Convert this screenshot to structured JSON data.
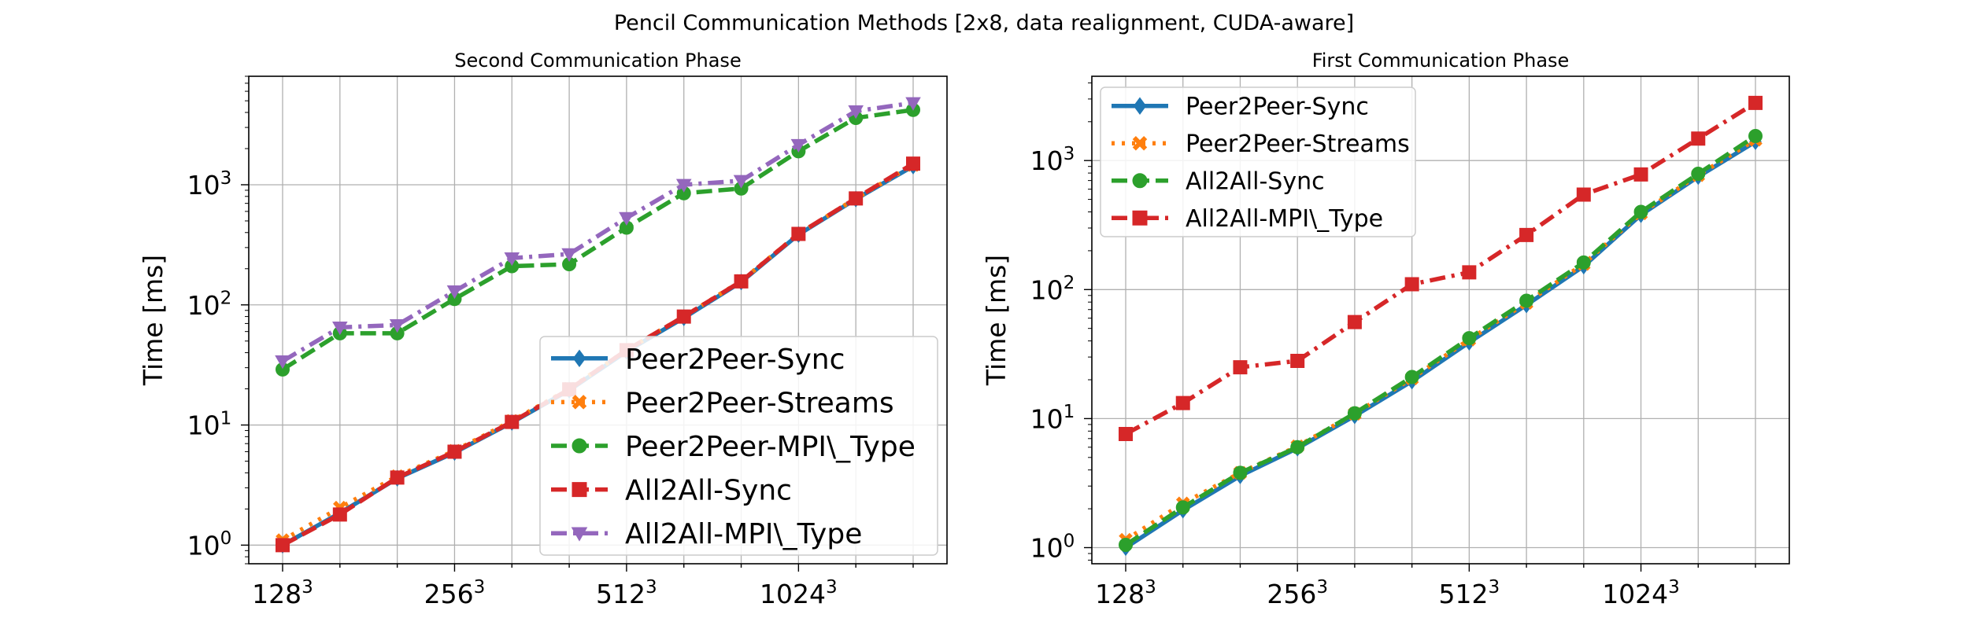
{
  "figure_title": "Pencil Communication Methods [2x8, data realignment, CUDA-aware]",
  "colors": {
    "blue": "#1f77b4",
    "orange": "#ff7f0e",
    "green": "#2ca02c",
    "red": "#d62728",
    "purple": "#9467bd",
    "grid": "#b0b0b0"
  },
  "chart_data": [
    {
      "type": "line",
      "title": "Second Communication Phase",
      "xlabel": "",
      "ylabel": "Time [ms]",
      "yscale": "log",
      "ylim": [
        0.7,
        8000
      ],
      "x_tick_labels": [
        {
          "base": "128",
          "exp": "3"
        },
        {
          "base": "256",
          "exp": "3"
        },
        {
          "base": "512",
          "exp": "3"
        },
        {
          "base": "1024",
          "exp": "3"
        }
      ],
      "y_tick_labels": [
        {
          "base": "10",
          "exp": "0"
        },
        {
          "base": "10",
          "exp": "1"
        },
        {
          "base": "10",
          "exp": "2"
        },
        {
          "base": "10",
          "exp": "3"
        }
      ],
      "grid": true,
      "legend_position": "lower-right",
      "categories": [
        "128³",
        "",
        "",
        "256³",
        "",
        "",
        "512³",
        "",
        "",
        "1024³",
        "",
        ""
      ],
      "series": [
        {
          "name": "Peer2Peer-Sync",
          "color": "#1f77b4",
          "dash": "solid",
          "marker": "diamond",
          "values": [
            1.0,
            1.85,
            3.6,
            5.9,
            10.5,
            19.5,
            41,
            78,
            155,
            385,
            760,
            1430
          ]
        },
        {
          "name": "Peer2Peer-Streams",
          "color": "#ff7f0e",
          "dash": "dotted",
          "marker": "x",
          "values": [
            1.1,
            2.05,
            3.75,
            6.1,
            10.8,
            20,
            42,
            80,
            158,
            390,
            770,
            1460
          ]
        },
        {
          "name": "Peer2Peer-MPI\\_Type",
          "color": "#2ca02c",
          "dash": "dashed",
          "marker": "circle",
          "values": [
            29,
            58,
            58,
            112,
            210,
            218,
            440,
            850,
            930,
            1900,
            3600,
            4200
          ]
        },
        {
          "name": "All2All-Sync",
          "color": "#d62728",
          "dash": "dashed",
          "marker": "square",
          "values": [
            1.0,
            1.8,
            3.65,
            6.0,
            10.6,
            19.8,
            42,
            80,
            157,
            390,
            770,
            1500
          ]
        },
        {
          "name": "All2All-MPI\\_Type",
          "color": "#9467bd",
          "dash": "dashdot",
          "marker": "triangle-down",
          "values": [
            34,
            65,
            68,
            130,
            245,
            265,
            530,
            1000,
            1080,
            2150,
            4100,
            4800
          ]
        }
      ]
    },
    {
      "type": "line",
      "title": "First Communication Phase",
      "xlabel": "",
      "ylabel": "Time [ms]",
      "yscale": "log",
      "ylim": [
        0.75,
        4500
      ],
      "x_tick_labels": [
        {
          "base": "128",
          "exp": "3"
        },
        {
          "base": "256",
          "exp": "3"
        },
        {
          "base": "512",
          "exp": "3"
        },
        {
          "base": "1024",
          "exp": "3"
        }
      ],
      "y_tick_labels": [
        {
          "base": "10",
          "exp": "0"
        },
        {
          "base": "10",
          "exp": "1"
        },
        {
          "base": "10",
          "exp": "2"
        },
        {
          "base": "10",
          "exp": "3"
        }
      ],
      "grid": true,
      "legend_position": "upper-left",
      "categories": [
        "128³",
        "",
        "",
        "256³",
        "",
        "",
        "512³",
        "",
        "",
        "1024³",
        "",
        ""
      ],
      "series": [
        {
          "name": "Peer2Peer-Sync",
          "color": "#1f77b4",
          "dash": "solid",
          "marker": "diamond",
          "values": [
            1.0,
            1.95,
            3.6,
            5.9,
            10.5,
            19.5,
            39,
            76,
            152,
            380,
            750,
            1400
          ]
        },
        {
          "name": "Peer2Peer-Streams",
          "color": "#ff7f0e",
          "dash": "dotted",
          "marker": "x",
          "values": [
            1.15,
            2.2,
            3.8,
            6.1,
            10.9,
            20.5,
            41,
            79,
            158,
            390,
            770,
            1450
          ]
        },
        {
          "name": "All2All-Sync",
          "color": "#2ca02c",
          "dash": "dashed",
          "marker": "circle",
          "values": [
            1.05,
            2.05,
            3.8,
            6.0,
            11.0,
            21,
            42,
            82,
            162,
            400,
            790,
            1550
          ]
        },
        {
          "name": "All2All-MPI\\_Type",
          "color": "#d62728",
          "dash": "dashdot",
          "marker": "square",
          "values": [
            7.6,
            13.2,
            25,
            28,
            56,
            110,
            136,
            265,
            545,
            780,
            1480,
            2800
          ]
        }
      ]
    }
  ]
}
